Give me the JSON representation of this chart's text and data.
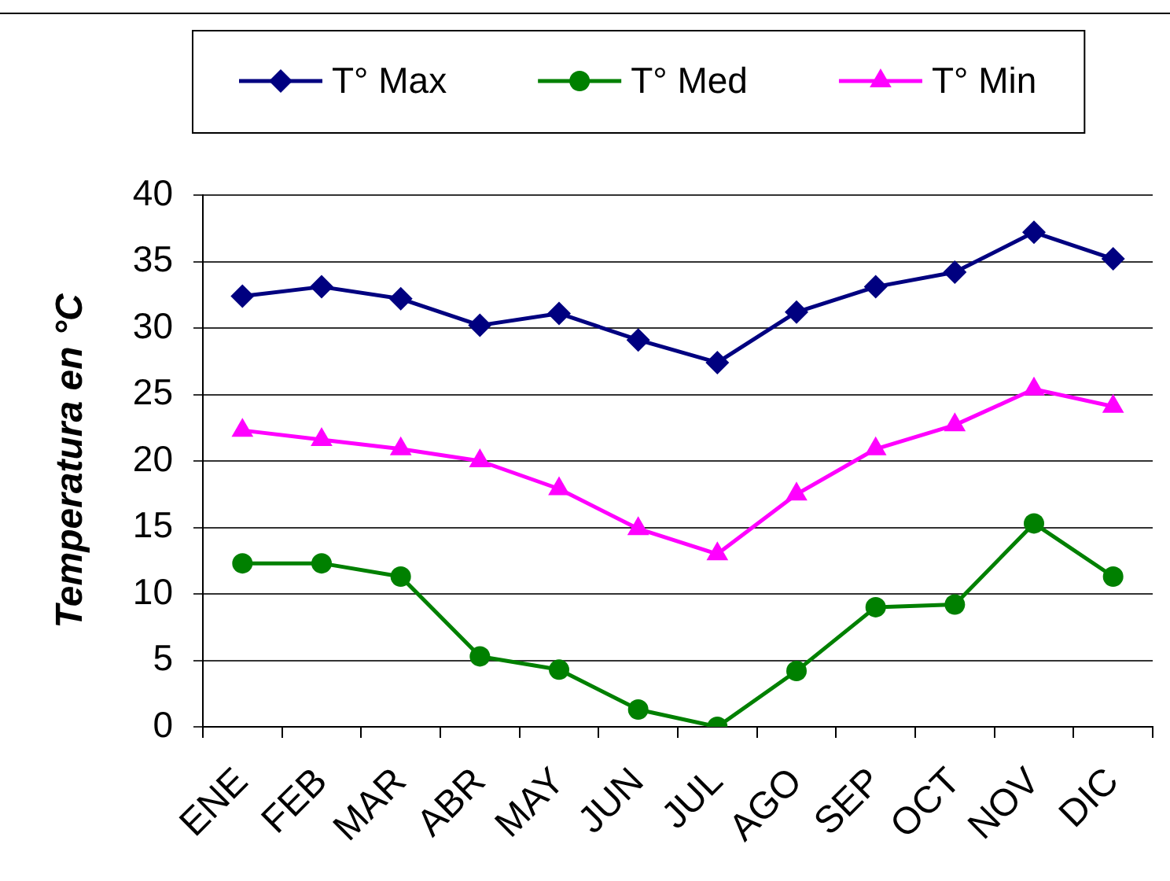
{
  "chart_data": {
    "type": "line",
    "ylabel": "Temperatura en °C",
    "categories": [
      "ENE",
      "FEB",
      "MAR",
      "ABR",
      "MAY",
      "JUN",
      "JUL",
      "AGO",
      "SEP",
      "OCT",
      "NOV",
      "DIC"
    ],
    "series": [
      {
        "name": "T° Max",
        "color": "#000080",
        "marker": "diamond",
        "values": [
          32.4,
          33.1,
          32.2,
          30.2,
          31.1,
          29.1,
          27.4,
          31.2,
          33.1,
          34.2,
          37.2,
          35.2
        ]
      },
      {
        "name": "T° Med",
        "color": "#008000",
        "marker": "circle",
        "values": [
          12.3,
          12.3,
          11.3,
          5.3,
          4.3,
          1.3,
          0,
          4.2,
          9.0,
          9.2,
          15.3,
          11.3
        ]
      },
      {
        "name": "T° Min",
        "color": "#ff00ff",
        "marker": "triangle",
        "values": [
          22.3,
          21.6,
          20.9,
          20.0,
          17.9,
          14.9,
          13.0,
          17.5,
          20.9,
          22.7,
          25.4,
          24.1
        ]
      }
    ],
    "ylim": [
      0,
      40
    ],
    "yticks": [
      0,
      5,
      10,
      15,
      20,
      25,
      30,
      35,
      40
    ],
    "grid": "y",
    "legend": "top"
  }
}
